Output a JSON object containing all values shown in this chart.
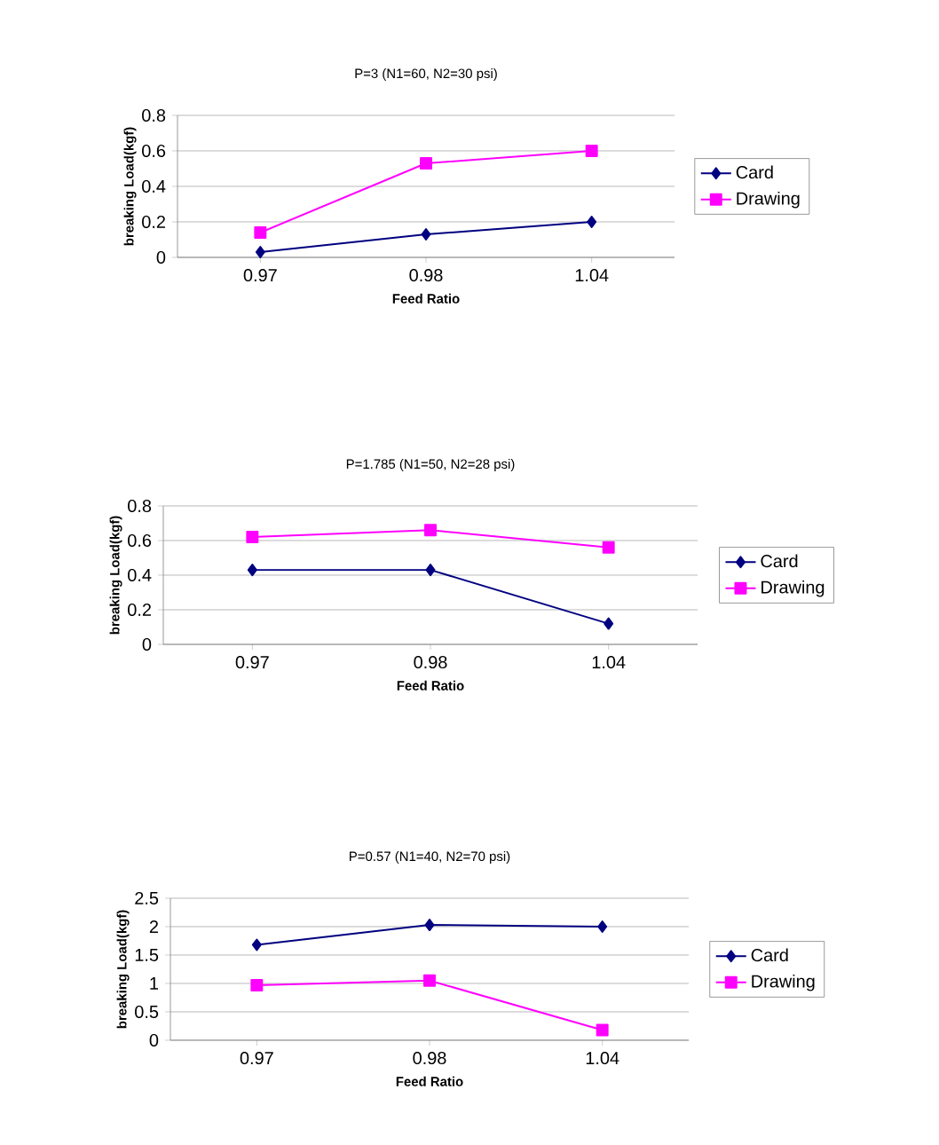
{
  "chart_data": [
    {
      "type": "line",
      "title": "P=3 (N1=60, N2=30 psi)",
      "xlabel": "Feed Ratio",
      "ylabel": "breaking Load(kgf)",
      "categories": [
        "0.97",
        "0.98",
        "1.04"
      ],
      "ylim": [
        0,
        0.8
      ],
      "yticks": [
        0,
        0.2,
        0.4,
        0.6,
        0.8
      ],
      "grid": "y",
      "legend": "right",
      "series": [
        {
          "name": "Card",
          "color": "#000080",
          "marker": "diamond",
          "values": [
            0.03,
            0.13,
            0.2
          ]
        },
        {
          "name": "Drawing",
          "color": "#ff00ff",
          "marker": "square",
          "values": [
            0.14,
            0.53,
            0.6
          ]
        }
      ]
    },
    {
      "type": "line",
      "title": "P=1.785 (N1=50, N2=28 psi)",
      "xlabel": "Feed Ratio",
      "ylabel": "breaking Load(kgf)",
      "categories": [
        "0.97",
        "0.98",
        "1.04"
      ],
      "ylim": [
        0,
        0.8
      ],
      "yticks": [
        0,
        0.2,
        0.4,
        0.6,
        0.8
      ],
      "grid": "y",
      "legend": "right",
      "series": [
        {
          "name": "Card",
          "color": "#000080",
          "marker": "diamond",
          "values": [
            0.43,
            0.43,
            0.12
          ]
        },
        {
          "name": "Drawing",
          "color": "#ff00ff",
          "marker": "square",
          "values": [
            0.62,
            0.66,
            0.56
          ]
        }
      ]
    },
    {
      "type": "line",
      "title": "P=0.57 (N1=40, N2=70 psi)",
      "xlabel": "Feed Ratio",
      "ylabel": "breaking Load(kgf)",
      "categories": [
        "0.97",
        "0.98",
        "1.04"
      ],
      "ylim": [
        0,
        2.5
      ],
      "yticks": [
        0,
        0.5,
        1,
        1.5,
        2,
        2.5
      ],
      "grid": "y",
      "legend": "right",
      "series": [
        {
          "name": "Card",
          "color": "#000080",
          "marker": "diamond",
          "values": [
            1.68,
            2.03,
            2.0
          ]
        },
        {
          "name": "Drawing",
          "color": "#ff00ff",
          "marker": "square",
          "values": [
            0.97,
            1.05,
            0.18
          ]
        }
      ]
    }
  ]
}
